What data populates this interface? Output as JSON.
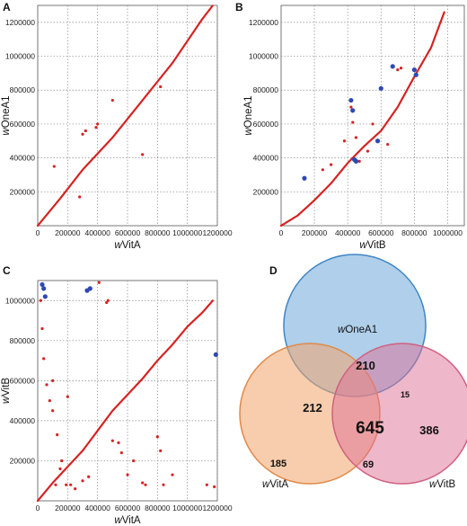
{
  "figure": {
    "panels": [
      "A",
      "B",
      "C",
      "D"
    ]
  },
  "chart_data": [
    {
      "id": "A",
      "type": "scatter",
      "xlabel_prefix": "w",
      "xlabel_rest": "VitA",
      "ylabel_prefix": "w",
      "ylabel_rest": "OneA1",
      "xlim": [
        0,
        1200000
      ],
      "ylim": [
        0,
        1300000
      ],
      "xticks": [
        0,
        200000,
        400000,
        600000,
        800000,
        1000000,
        1200000
      ],
      "yticks": [
        200000,
        400000,
        600000,
        800000,
        1000000,
        1200000
      ],
      "grid": true,
      "colors": {
        "match": "#d62222",
        "inverted": "#2f49b3"
      },
      "series": [
        {
          "kind": "diagonal",
          "color": "#d62222",
          "points": [
            [
              0,
              0
            ],
            [
              150000,
              160000
            ],
            [
              300000,
              330000
            ],
            [
              500000,
              520000
            ],
            [
              700000,
              740000
            ],
            [
              900000,
              960000
            ],
            [
              1100000,
              1220000
            ],
            [
              1170000,
              1300000
            ]
          ]
        },
        {
          "kind": "off-diagonal",
          "color": "#d62222",
          "points": [
            [
              110000,
              350000
            ],
            [
              280000,
              170000
            ],
            [
              300000,
              540000
            ],
            [
              320000,
              560000
            ],
            [
              390000,
              580000
            ],
            [
              400000,
              600000
            ],
            [
              500000,
              740000
            ],
            [
              700000,
              420000
            ],
            [
              820000,
              820000
            ]
          ]
        }
      ]
    },
    {
      "id": "B",
      "type": "scatter",
      "xlabel_prefix": "w",
      "xlabel_rest": "VitB",
      "ylabel_prefix": "w",
      "ylabel_rest": "OneA1",
      "xlim": [
        0,
        1100000
      ],
      "ylim": [
        0,
        1300000
      ],
      "xticks": [
        0,
        200000,
        400000,
        600000,
        800000,
        1000000
      ],
      "yticks": [
        200000,
        400000,
        600000,
        800000,
        1000000,
        1200000
      ],
      "grid": true,
      "colors": {
        "match": "#d62222",
        "inverted": "#2f49b3"
      },
      "series": [
        {
          "kind": "diagonal",
          "color": "#d62222",
          "points": [
            [
              0,
              0
            ],
            [
              100000,
              60000
            ],
            [
              200000,
              150000
            ],
            [
              300000,
              250000
            ],
            [
              400000,
              370000
            ],
            [
              500000,
              470000
            ],
            [
              600000,
              560000
            ],
            [
              700000,
              700000
            ],
            [
              800000,
              880000
            ],
            [
              900000,
              1050000
            ],
            [
              980000,
              1260000
            ]
          ]
        },
        {
          "kind": "off-diagonal",
          "color": "#d62222",
          "points": [
            [
              250000,
              330000
            ],
            [
              300000,
              360000
            ],
            [
              380000,
              500000
            ],
            [
              420000,
              700000
            ],
            [
              430000,
              610000
            ],
            [
              450000,
              520000
            ],
            [
              470000,
              380000
            ],
            [
              520000,
              440000
            ],
            [
              550000,
              600000
            ],
            [
              600000,
              810000
            ],
            [
              640000,
              480000
            ],
            [
              700000,
              920000
            ],
            [
              720000,
              930000
            ]
          ]
        },
        {
          "kind": "inverted",
          "color": "#2f49b3",
          "points": [
            [
              140000,
              280000
            ],
            [
              420000,
              740000
            ],
            [
              430000,
              680000
            ],
            [
              440000,
              390000
            ],
            [
              450000,
              380000
            ],
            [
              580000,
              500000
            ],
            [
              600000,
              810000
            ],
            [
              670000,
              940000
            ],
            [
              800000,
              920000
            ],
            [
              810000,
              890000
            ]
          ]
        }
      ]
    },
    {
      "id": "C",
      "type": "scatter",
      "xlabel_prefix": "w",
      "xlabel_rest": "VitA",
      "ylabel_prefix": "w",
      "ylabel_rest": "VitB",
      "xlim": [
        0,
        1200000
      ],
      "ylim": [
        0,
        1100000
      ],
      "xticks": [
        0,
        200000,
        400000,
        600000,
        800000,
        1000000,
        1200000
      ],
      "yticks": [
        200000,
        400000,
        600000,
        800000,
        1000000
      ],
      "grid": true,
      "colors": {
        "match": "#d62222",
        "inverted": "#2f49b3"
      },
      "series": [
        {
          "kind": "diagonal",
          "color": "#d62222",
          "points": [
            [
              0,
              0
            ],
            [
              100000,
              90000
            ],
            [
              200000,
              170000
            ],
            [
              300000,
              250000
            ],
            [
              400000,
              350000
            ],
            [
              500000,
              450000
            ],
            [
              600000,
              530000
            ],
            [
              700000,
              610000
            ],
            [
              800000,
              700000
            ],
            [
              900000,
              780000
            ],
            [
              1000000,
              870000
            ],
            [
              1100000,
              940000
            ],
            [
              1170000,
              1000000
            ]
          ]
        },
        {
          "kind": "off-diagonal",
          "color": "#d62222",
          "points": [
            [
              20000,
              1000000
            ],
            [
              30000,
              860000
            ],
            [
              40000,
              710000
            ],
            [
              60000,
              580000
            ],
            [
              80000,
              500000
            ],
            [
              100000,
              450000
            ],
            [
              100000,
              600000
            ],
            [
              120000,
              80000
            ],
            [
              130000,
              330000
            ],
            [
              150000,
              160000
            ],
            [
              160000,
              200000
            ],
            [
              190000,
              80000
            ],
            [
              200000,
              520000
            ],
            [
              220000,
              80000
            ],
            [
              250000,
              60000
            ],
            [
              300000,
              100000
            ],
            [
              340000,
              120000
            ],
            [
              410000,
              1090000
            ],
            [
              460000,
              990000
            ],
            [
              470000,
              1000000
            ],
            [
              500000,
              300000
            ],
            [
              540000,
              290000
            ],
            [
              560000,
              240000
            ],
            [
              600000,
              130000
            ],
            [
              640000,
              200000
            ],
            [
              700000,
              90000
            ],
            [
              720000,
              80000
            ],
            [
              800000,
              320000
            ],
            [
              820000,
              250000
            ],
            [
              840000,
              80000
            ],
            [
              900000,
              130000
            ],
            [
              1130000,
              80000
            ],
            [
              1180000,
              70000
            ]
          ]
        },
        {
          "kind": "inverted",
          "color": "#2f49b3",
          "points": [
            [
              30000,
              1080000
            ],
            [
              40000,
              1060000
            ],
            [
              50000,
              1020000
            ],
            [
              330000,
              1050000
            ],
            [
              350000,
              1060000
            ],
            [
              1190000,
              730000
            ]
          ]
        }
      ]
    },
    {
      "id": "D",
      "type": "venn",
      "sets": [
        {
          "name_prefix": "w",
          "name_rest": "OneA1",
          "color": "#5f9fd6"
        },
        {
          "name_prefix": "w",
          "name_rest": "VitA",
          "color": "#f2a46a"
        },
        {
          "name_prefix": "w",
          "name_rest": "VitB",
          "color": "#de7095"
        }
      ],
      "regions": [
        {
          "sets": [
            "wOneA1"
          ],
          "value": "210"
        },
        {
          "sets": [
            "wOneA1",
            "wVitA"
          ],
          "value": "212"
        },
        {
          "sets": [
            "wOneA1",
            "wVitA",
            "wVitB"
          ],
          "value": "645"
        },
        {
          "sets": [
            "wOneA1",
            "wVitB"
          ],
          "value": "15"
        },
        {
          "sets": [
            "wVitB"
          ],
          "value": "386"
        },
        {
          "sets": [
            "wVitA"
          ],
          "value": "185"
        },
        {
          "sets": [
            "wVitA",
            "wVitB"
          ],
          "value": "69"
        }
      ]
    }
  ]
}
